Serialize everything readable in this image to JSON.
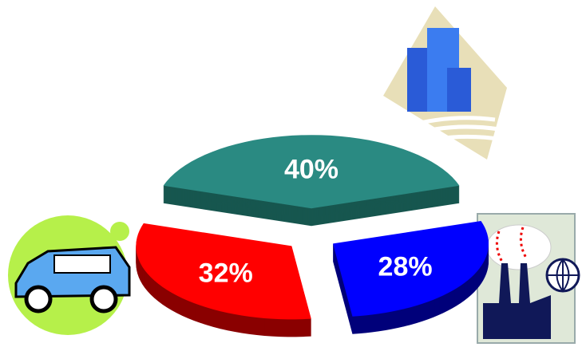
{
  "chart_data": {
    "type": "pie",
    "values": [
      40,
      32,
      28
    ],
    "value_labels": [
      "40%",
      "32%",
      "28%"
    ],
    "colors": [
      "#2a8a82",
      "#ff0000",
      "#0000ff"
    ],
    "side_colors": [
      "#17564f",
      "#8a0000",
      "#00007a"
    ]
  }
}
